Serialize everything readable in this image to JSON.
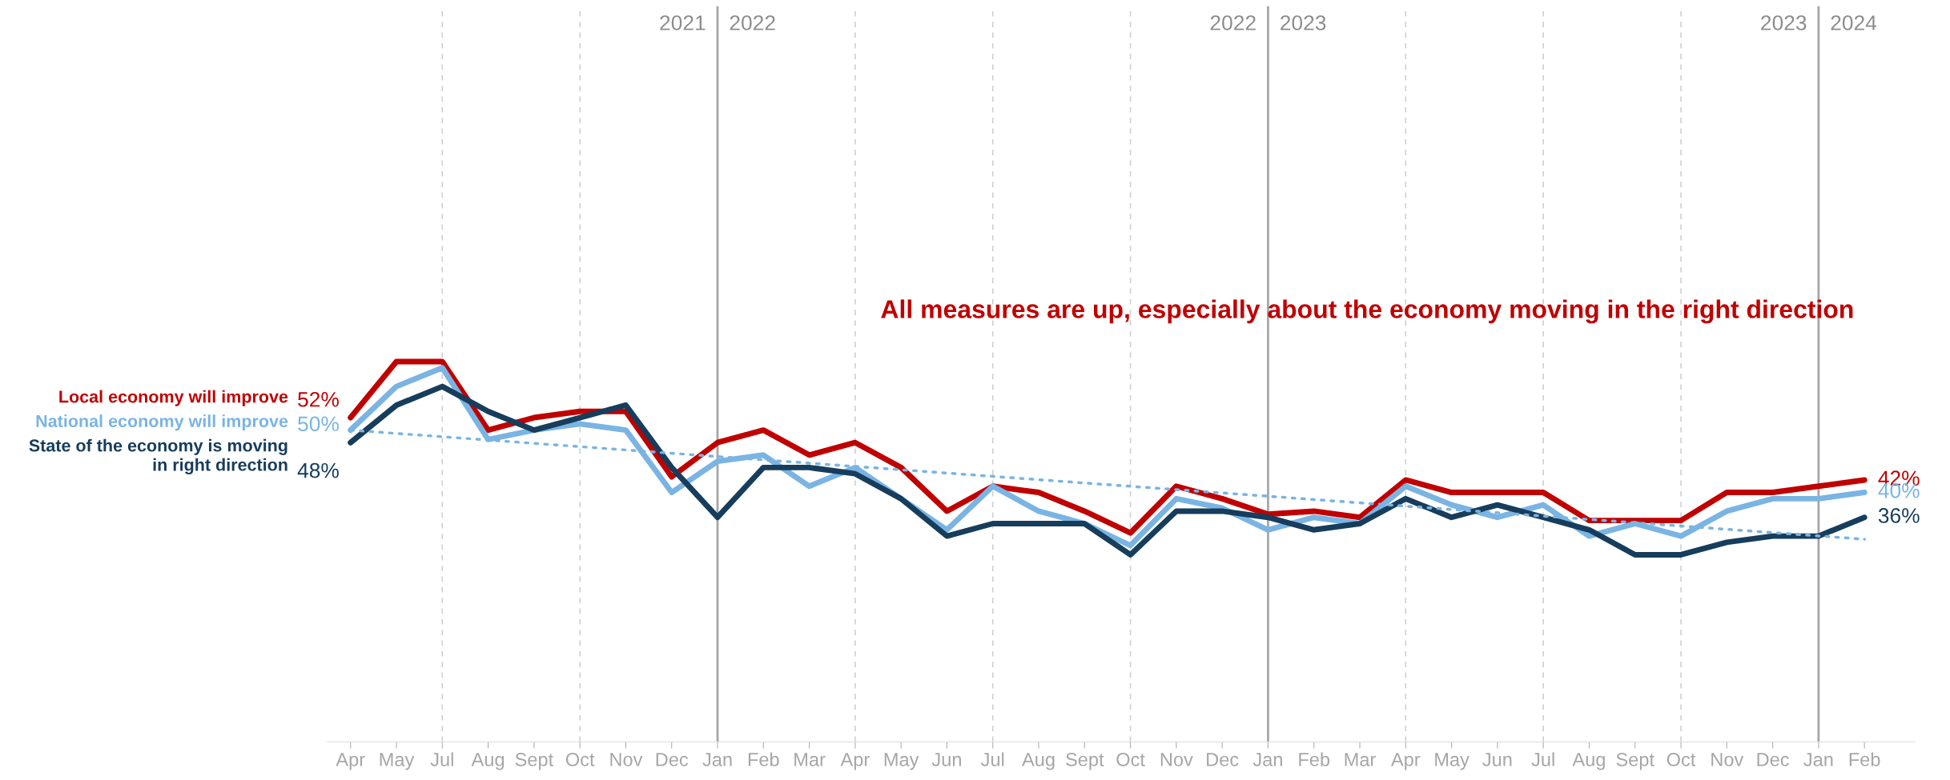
{
  "chart_data": {
    "type": "line",
    "categories": [
      "Apr",
      "May",
      "Jul",
      "Aug",
      "Sept",
      "Oct",
      "Nov",
      "Dec",
      "Jan",
      "Feb",
      "Mar",
      "Apr",
      "May",
      "Jun",
      "Jul",
      "Aug",
      "Sept",
      "Oct",
      "Nov",
      "Dec",
      "Jan",
      "Feb",
      "Mar",
      "Apr",
      "May",
      "Jun",
      "Jul",
      "Aug",
      "Sept",
      "Oct",
      "Nov",
      "Dec",
      "Jan",
      "Feb"
    ],
    "ylim": [
      0,
      118
    ],
    "tick_labels": "x",
    "legend": false,
    "grid": "x",
    "marker": "none",
    "series": [
      {
        "name": "Local economy will improve",
        "color": "#c00000",
        "values": [
          52,
          61,
          61,
          50,
          52,
          53,
          53,
          42.5,
          48,
          50,
          46,
          48,
          44,
          37,
          41,
          40,
          37,
          33.5,
          41,
          39,
          36.5,
          37,
          36,
          42,
          40,
          40,
          40,
          35.5,
          35.5,
          35.5,
          40,
          40,
          41,
          42
        ],
        "value_labels": [
          "52%",
          null,
          null,
          null,
          null,
          null,
          null,
          null,
          null,
          null,
          null,
          null,
          null,
          null,
          null,
          null,
          null,
          null,
          null,
          null,
          null,
          null,
          null,
          null,
          null,
          null,
          null,
          null,
          null,
          null,
          null,
          null,
          null,
          "42%"
        ]
      },
      {
        "name": "National economy will improve",
        "color": "#7ab4e3",
        "values": [
          50,
          57,
          60,
          48.5,
          50,
          51,
          50,
          40,
          45,
          46,
          41,
          44,
          39,
          34,
          41,
          37,
          35,
          31.5,
          39,
          37.5,
          34,
          36,
          35,
          41,
          38,
          36,
          38,
          33,
          35,
          33,
          37,
          39,
          39,
          40
        ],
        "value_labels": [
          "50%",
          null,
          null,
          null,
          null,
          null,
          null,
          null,
          null,
          null,
          null,
          null,
          null,
          null,
          null,
          null,
          null,
          null,
          null,
          null,
          null,
          null,
          null,
          null,
          null,
          null,
          null,
          null,
          null,
          null,
          null,
          null,
          null,
          "40%"
        ]
      },
      {
        "name": "State of the economy is moving\nin right direction",
        "color": "#173d5c",
        "values": [
          48,
          54,
          57,
          53,
          50,
          52,
          54,
          44,
          36,
          44,
          44,
          43,
          39,
          33,
          35,
          35,
          35,
          30,
          37,
          37,
          36,
          34,
          35,
          39,
          36,
          38,
          36,
          34,
          30,
          30,
          32,
          33,
          33,
          36
        ],
        "value_labels": [
          "48%",
          null,
          null,
          null,
          null,
          null,
          null,
          null,
          null,
          null,
          null,
          null,
          null,
          null,
          null,
          null,
          null,
          null,
          null,
          null,
          null,
          null,
          null,
          null,
          null,
          null,
          null,
          null,
          null,
          null,
          null,
          null,
          null,
          "36%"
        ]
      },
      {
        "type": "line",
        "color": "#7ab4e3",
        "line_style": "dotted",
        "values": [
          50,
          null,
          null,
          null,
          null,
          null,
          null,
          null,
          null,
          null,
          null,
          null,
          null,
          null,
          null,
          null,
          null,
          null,
          null,
          null,
          null,
          null,
          null,
          null,
          null,
          null,
          null,
          null,
          null,
          null,
          null,
          null,
          null,
          32.5
        ]
      }
    ],
    "annotations": [
      "2021",
      "2022",
      "2022",
      "2023",
      "2023",
      "2024",
      "All measures are up, especially about the economy moving in the right direction"
    ]
  }
}
